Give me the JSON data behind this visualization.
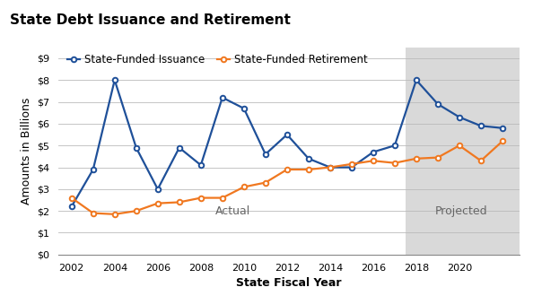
{
  "title": "State Debt Issuance and Retirement",
  "xlabel": "State Fiscal Year",
  "ylabel": "Amounts in Billions",
  "header_bg_color": "#d9d9d9",
  "plot_bg_color": "#ffffff",
  "figure_bg_color": "#ffffff",
  "projected_bg_color": "#d9d9d9",
  "projected_start": 2017.5,
  "issuance": {
    "label": "State-Funded Issuance",
    "color": "#1f5099",
    "marker": "o",
    "years": [
      2002,
      2003,
      2004,
      2005,
      2006,
      2007,
      2008,
      2009,
      2010,
      2011,
      2012,
      2013,
      2014,
      2015,
      2016,
      2017,
      2018,
      2019,
      2020,
      2021,
      2022
    ],
    "values": [
      2.2,
      3.9,
      8.0,
      4.9,
      3.0,
      4.9,
      4.1,
      7.2,
      6.7,
      4.6,
      5.5,
      4.4,
      4.0,
      4.0,
      4.7,
      5.0,
      8.0,
      6.9,
      6.3,
      5.9,
      5.8
    ]
  },
  "retirement": {
    "label": "State-Funded Retirement",
    "color": "#f07820",
    "marker": "o",
    "years": [
      2002,
      2003,
      2004,
      2005,
      2006,
      2007,
      2008,
      2009,
      2010,
      2011,
      2012,
      2013,
      2014,
      2015,
      2016,
      2017,
      2018,
      2019,
      2020,
      2021,
      2022
    ],
    "values": [
      2.6,
      1.9,
      1.85,
      2.0,
      2.35,
      2.4,
      2.6,
      2.6,
      3.1,
      3.3,
      3.9,
      3.9,
      4.0,
      4.15,
      4.3,
      4.2,
      4.4,
      4.45,
      5.0,
      4.3,
      5.2
    ]
  },
  "yticks": [
    0,
    1,
    2,
    3,
    4,
    5,
    6,
    7,
    8,
    9
  ],
  "ylim": [
    0,
    9.5
  ],
  "xlim": [
    2001.4,
    2022.8
  ],
  "xticks": [
    2002,
    2004,
    2006,
    2008,
    2010,
    2012,
    2014,
    2016,
    2018,
    2020
  ],
  "actual_label": "Actual",
  "projected_label": "Projected",
  "title_fontsize": 11,
  "label_fontsize": 9,
  "tick_fontsize": 8,
  "legend_fontsize": 8.5,
  "annotation_fontsize": 9
}
